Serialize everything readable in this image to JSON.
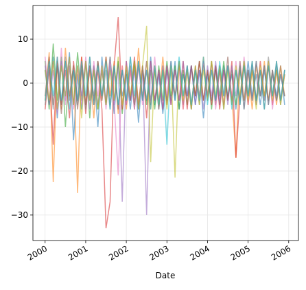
{
  "chart_data": {
    "type": "line",
    "x_label": "Date",
    "x": [
      2000,
      2000.1,
      2000.2,
      2000.3,
      2000.4,
      2000.5,
      2000.6,
      2000.7,
      2000.8,
      2000.9,
      2001,
      2001.1,
      2001.2,
      2001.3,
      2001.4,
      2001.5,
      2001.6,
      2001.7,
      2001.8,
      2001.9,
      2002,
      2002.1,
      2002.2,
      2002.3,
      2002.4,
      2002.5,
      2002.6,
      2002.7,
      2002.8,
      2002.9,
      2003,
      2003.1,
      2003.2,
      2003.3,
      2003.4,
      2003.5,
      2003.6,
      2003.7,
      2003.8,
      2003.9,
      2004,
      2004.1,
      2004.2,
      2004.3,
      2004.4,
      2004.5,
      2004.6,
      2004.7,
      2004.8,
      2004.9,
      2005,
      2005.1,
      2005.2,
      2005.3,
      2005.4,
      2005.5,
      2005.6,
      2005.7,
      2005.8,
      2005.9
    ],
    "series": [
      {
        "color": "#1f77b4",
        "values": [
          3,
          -5,
          6,
          -8,
          4,
          -3,
          7,
          -13,
          2,
          -6,
          5,
          -4,
          3,
          -10,
          6,
          -5,
          4,
          -7,
          5,
          -3,
          2,
          -6,
          4,
          -9,
          3,
          -4,
          6,
          -5,
          2,
          -7,
          3,
          -4,
          5,
          -6,
          2,
          -3,
          4,
          -5,
          3,
          -8,
          2,
          -4,
          3,
          -5,
          4,
          -3,
          2,
          -6,
          3,
          -4,
          5,
          -3,
          2,
          -5,
          3,
          -4,
          2,
          -3,
          4,
          -5
        ]
      },
      {
        "color": "#ff7f0e",
        "values": [
          -4,
          7,
          -22.5,
          5,
          -6,
          8,
          -3,
          4,
          -25,
          6,
          -5,
          3,
          -8,
          5,
          -4,
          6,
          -3,
          5,
          -7,
          4,
          -6,
          3,
          -5,
          8,
          -4,
          5,
          -6,
          3,
          -4,
          6,
          -5,
          4,
          -3,
          5,
          -6,
          4,
          -5,
          3,
          -4,
          6,
          -3,
          5,
          -4,
          3,
          -5,
          4,
          -3,
          -17,
          5,
          -4,
          3,
          -6,
          4,
          -3,
          5,
          -4,
          3,
          -5,
          4,
          -3
        ]
      },
      {
        "color": "#2ca02c",
        "values": [
          5,
          -6,
          9,
          -4,
          6,
          -10,
          4,
          -5,
          7,
          -4,
          5,
          -8,
          4,
          -6,
          3,
          -5,
          6,
          -4,
          5,
          -7,
          3,
          -4,
          5,
          -6,
          4,
          -5,
          3,
          -6,
          4,
          -4,
          5,
          -3,
          4,
          -6,
          3,
          -5,
          4,
          -3,
          5,
          -4,
          3,
          -6,
          4,
          -3,
          5,
          -4,
          3,
          -5,
          4,
          -6,
          3,
          -4,
          5,
          -3,
          4,
          -5,
          3,
          -4,
          2,
          -3
        ]
      },
      {
        "color": "#d62728",
        "values": [
          -6,
          4,
          -14,
          6,
          -5,
          3,
          -8,
          5,
          -4,
          6,
          -7,
          4,
          -5,
          3,
          -6,
          -33,
          -27,
          4,
          15,
          -6,
          5,
          -4,
          6,
          -5,
          4,
          -8,
          5,
          -4,
          3,
          -6,
          4,
          -5,
          3,
          -4,
          5,
          -6,
          4,
          -3,
          5,
          -4,
          3,
          -5,
          4,
          -6,
          3,
          -4,
          5,
          -17,
          -3,
          4,
          -5,
          3,
          -4,
          5,
          -3,
          4,
          -5,
          3,
          -4,
          2
        ]
      },
      {
        "color": "#9467bd",
        "values": [
          4,
          -5,
          3,
          -6,
          5,
          -4,
          6,
          -5,
          4,
          -3,
          5,
          -6,
          4,
          -5,
          3,
          -4,
          6,
          -5,
          4,
          -27,
          5,
          -4,
          3,
          -6,
          4,
          -30,
          5,
          -4,
          3,
          -6,
          4,
          -5,
          3,
          -4,
          5,
          -3,
          4,
          -5,
          3,
          -6,
          4,
          -3,
          5,
          -4,
          3,
          -5,
          4,
          -3,
          5,
          -6,
          3,
          -4,
          5,
          -3,
          4,
          -5,
          3,
          -4,
          2,
          -3
        ]
      },
      {
        "color": "#8c564b",
        "values": [
          -3,
          6,
          -5,
          4,
          -7,
          5,
          -4,
          3,
          -6,
          4,
          -5,
          6,
          -4,
          5,
          -3,
          6,
          -5,
          4,
          -6,
          3,
          -5,
          4,
          -6,
          5,
          -4,
          3,
          -5,
          4,
          -6,
          3,
          -4,
          5,
          -3,
          4,
          -5,
          3,
          -6,
          4,
          -3,
          5,
          -4,
          3,
          -5,
          4,
          -3,
          6,
          -4,
          3,
          -5,
          4,
          -3,
          5,
          -4,
          3,
          -6,
          4,
          -3,
          5,
          -4,
          3
        ]
      },
      {
        "color": "#e377c2",
        "values": [
          6,
          -4,
          5,
          -7,
          8,
          -5,
          4,
          -6,
          3,
          -5,
          6,
          -4,
          5,
          -3,
          4,
          -6,
          5,
          -4,
          -21,
          4,
          -5,
          3,
          -6,
          4,
          -5,
          3,
          -4,
          6,
          -5,
          4,
          -3,
          5,
          -4,
          3,
          -6,
          4,
          -5,
          3,
          -4,
          5,
          -3,
          4,
          -6,
          3,
          -5,
          4,
          -3,
          5,
          -4,
          6,
          -3,
          4,
          -5,
          3,
          -4,
          5,
          -6,
          3,
          -4,
          2
        ]
      },
      {
        "color": "#7f7f7f",
        "values": [
          -5,
          3,
          -6,
          4,
          -5,
          6,
          -3,
          4,
          -5,
          3,
          -6,
          4,
          -3,
          5,
          -4,
          3,
          -6,
          4,
          -5,
          3,
          -4,
          6,
          -5,
          4,
          -3,
          5,
          -4,
          3,
          -6,
          4,
          -5,
          3,
          -4,
          5,
          -3,
          4,
          -6,
          3,
          -5,
          4,
          -3,
          5,
          -4,
          3,
          -6,
          4,
          -5,
          3,
          -4,
          5,
          -3,
          4,
          -5,
          3,
          -4,
          6,
          -3,
          4,
          -5,
          3
        ]
      },
      {
        "color": "#bcbd22",
        "values": [
          3,
          -4,
          5,
          -6,
          4,
          -3,
          6,
          -5,
          4,
          -8,
          5,
          -4,
          3,
          -6,
          4,
          -5,
          3,
          -4,
          6,
          -5,
          4,
          -3,
          5,
          -6,
          4,
          13,
          -18,
          4,
          -5,
          3,
          -6,
          4,
          -21.5,
          5,
          -4,
          3,
          -6,
          4,
          -5,
          3,
          -4,
          5,
          -3,
          4,
          -6,
          3,
          -5,
          4,
          -3,
          5,
          -4,
          3,
          -6,
          4,
          -3,
          5,
          -4,
          3,
          -5,
          2
        ]
      },
      {
        "color": "#17becf",
        "values": [
          -4,
          5,
          -3,
          6,
          -4,
          5,
          -6,
          3,
          -4,
          5,
          -3,
          6,
          -5,
          4,
          -3,
          5,
          -6,
          4,
          -5,
          3,
          -4,
          6,
          -3,
          5,
          -4,
          3,
          -6,
          4,
          -5,
          3,
          -14,
          5,
          -4,
          6,
          -3,
          4,
          -5,
          3,
          -4,
          6,
          -5,
          3,
          -4,
          5,
          -3,
          4,
          -6,
          3,
          -5,
          4,
          -3,
          5,
          -4,
          3,
          -6,
          4,
          -3,
          5,
          -4,
          3
        ]
      }
    ],
    "xlim": [
      1999.7,
      2006.24
    ],
    "xticks": [
      2000,
      2001,
      2002,
      2003,
      2004,
      2005,
      2006
    ],
    "ylim": [
      -35.8,
      17.66
    ],
    "yticks": [
      {
        "value": -30,
        "label": "−30"
      },
      {
        "value": -20,
        "label": "−20"
      },
      {
        "value": -10,
        "label": "−10"
      },
      0,
      10
    ],
    "grid": true
  }
}
